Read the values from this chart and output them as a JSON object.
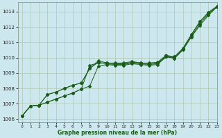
{
  "title": "Graphe pression niveau de la mer (hPa)",
  "bg_color": "#cce8ee",
  "grid_color": "#b0c8b0",
  "line_color": "#1a5c1a",
  "xlim": [
    -0.5,
    23
  ],
  "ylim": [
    1005.8,
    1013.6
  ],
  "yticks": [
    1006,
    1007,
    1008,
    1009,
    1010,
    1011,
    1012,
    1013
  ],
  "xticks": [
    0,
    1,
    2,
    3,
    4,
    5,
    6,
    7,
    8,
    9,
    10,
    11,
    12,
    13,
    14,
    15,
    16,
    17,
    18,
    19,
    20,
    21,
    22,
    23
  ],
  "series": [
    [
      1006.2,
      1006.85,
      1006.9,
      1007.1,
      1007.3,
      1007.5,
      1007.7,
      1007.95,
      1008.15,
      1009.45,
      1009.55,
      1009.5,
      1009.5,
      1009.6,
      1009.55,
      1009.5,
      1009.55,
      1010.05,
      1009.95,
      1010.5,
      1011.35,
      1012.1,
      1012.75,
      1013.3
    ],
    [
      1006.2,
      1006.85,
      1006.9,
      1007.6,
      1007.75,
      1008.0,
      1008.2,
      1008.35,
      1009.3,
      1009.7,
      1009.6,
      1009.55,
      1009.55,
      1009.65,
      1009.6,
      1009.55,
      1009.6,
      1010.05,
      1010.0,
      1010.55,
      1011.4,
      1012.2,
      1012.85,
      1013.3
    ],
    [
      1006.2,
      1006.85,
      1006.9,
      1007.6,
      1007.75,
      1008.0,
      1008.2,
      1008.35,
      1009.3,
      1009.8,
      1009.65,
      1009.6,
      1009.6,
      1009.7,
      1009.65,
      1009.6,
      1009.65,
      1010.1,
      1010.05,
      1010.6,
      1011.5,
      1012.35,
      1012.9,
      1013.3
    ],
    [
      1006.2,
      1006.85,
      1006.9,
      1007.1,
      1007.3,
      1007.5,
      1007.7,
      1007.95,
      1009.5,
      1009.65,
      1009.65,
      1009.65,
      1009.65,
      1009.75,
      1009.65,
      1009.65,
      1009.7,
      1010.15,
      1010.05,
      1010.6,
      1011.5,
      1012.35,
      1012.95,
      1013.35
    ]
  ]
}
